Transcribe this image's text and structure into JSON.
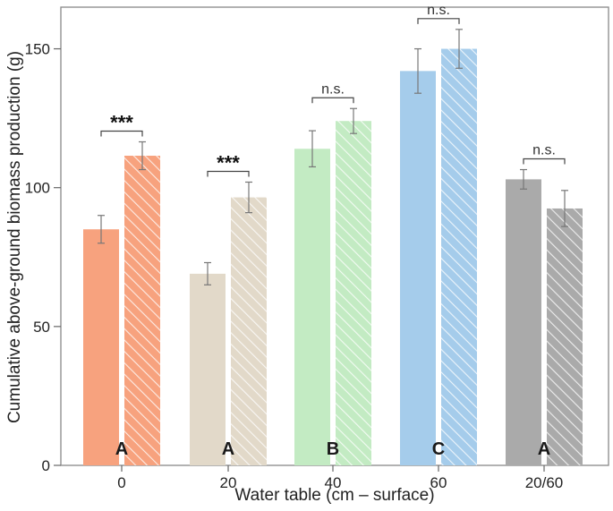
{
  "chart_data": {
    "type": "bar",
    "categories": [
      "0",
      "20",
      "40",
      "60",
      "20/60"
    ],
    "xlabel": "Water table (cm – surface)",
    "ylabel": "Cumulative above-ground biomass production (g)",
    "ylim": [
      0,
      165
    ],
    "yticks": [
      0,
      50,
      100,
      150
    ],
    "grid": false,
    "series": [
      {
        "pattern": "solid",
        "values": [
          85,
          69,
          114,
          142,
          103
        ],
        "errors": [
          5,
          4,
          6.5,
          8,
          3.5
        ]
      },
      {
        "pattern": "hatched",
        "values": [
          111.5,
          96.5,
          124,
          150,
          92.5
        ],
        "errors": [
          5,
          5.5,
          4.5,
          7,
          6.5
        ]
      }
    ],
    "group_letters": [
      "A",
      "A",
      "B",
      "C",
      "A"
    ],
    "significance": [
      "***",
      "***",
      "n.s.",
      "n.s.",
      "n.s."
    ],
    "colors": [
      "#F7A27E",
      "#E2D9C9",
      "#C3EBC3",
      "#A5CCEB",
      "#AAAAAA"
    ]
  }
}
